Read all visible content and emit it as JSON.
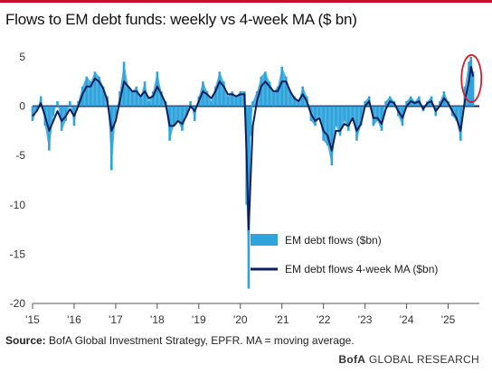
{
  "header": {
    "title": "Flows to EM debt funds: weekly vs 4-week MA ($ bn)"
  },
  "footer": {
    "source_label": "Source:",
    "source_text": " BofA Global Investment Strategy, EPFR. MA = moving average.",
    "brand_bofa": "BofA",
    "brand_rest": " GLOBAL RESEARCH"
  },
  "colors": {
    "accent_red": "#c8102e",
    "weekly_flows": "#2fa4dc",
    "ma_line": "#0b1f5c",
    "highlight_circle": "#d22030"
  },
  "chart_data": {
    "type": "area",
    "title": "Flows to EM debt funds: weekly vs 4-week MA ($ bn)",
    "xlabel": "",
    "ylabel": "",
    "x_ticks": [
      "'15",
      "'16",
      "'17",
      "'18",
      "'19",
      "'20",
      "'21",
      "'22",
      "'23",
      "'24",
      "'25"
    ],
    "y_ticks": [
      5,
      0,
      -5,
      -10,
      -15,
      -20
    ],
    "xlim": [
      2015.0,
      2025.75
    ],
    "ylim": [
      -20,
      6
    ],
    "grid": false,
    "legend_position": "bottom-center",
    "annotations": [
      "red circle around latest 2025 spike"
    ],
    "series": [
      {
        "name": "EM debt flows ($bn)",
        "style": "bars",
        "x": [
          2015.0,
          2015.1,
          2015.2,
          2015.3,
          2015.4,
          2015.5,
          2015.6,
          2015.7,
          2015.8,
          2015.9,
          2016.0,
          2016.1,
          2016.2,
          2016.3,
          2016.4,
          2016.5,
          2016.6,
          2016.7,
          2016.8,
          2016.9,
          2017.0,
          2017.1,
          2017.2,
          2017.3,
          2017.4,
          2017.5,
          2017.6,
          2017.7,
          2017.8,
          2017.9,
          2018.0,
          2018.1,
          2018.2,
          2018.3,
          2018.4,
          2018.5,
          2018.6,
          2018.7,
          2018.8,
          2018.9,
          2019.0,
          2019.1,
          2019.2,
          2019.3,
          2019.4,
          2019.5,
          2019.6,
          2019.7,
          2019.8,
          2019.9,
          2020.0,
          2020.1,
          2020.15,
          2020.2,
          2020.25,
          2020.3,
          2020.4,
          2020.5,
          2020.6,
          2020.7,
          2020.8,
          2020.9,
          2021.0,
          2021.1,
          2021.2,
          2021.3,
          2021.4,
          2021.5,
          2021.6,
          2021.7,
          2021.8,
          2021.9,
          2022.0,
          2022.1,
          2022.2,
          2022.3,
          2022.4,
          2022.5,
          2022.6,
          2022.7,
          2022.8,
          2022.9,
          2023.0,
          2023.1,
          2023.2,
          2023.3,
          2023.4,
          2023.5,
          2023.6,
          2023.7,
          2023.8,
          2023.9,
          2024.0,
          2024.1,
          2024.2,
          2024.3,
          2024.4,
          2024.5,
          2024.6,
          2024.7,
          2024.8,
          2024.9,
          2025.0,
          2025.1,
          2025.2,
          2025.3,
          2025.4,
          2025.5,
          2025.55,
          2025.6
        ],
        "values": [
          -1.5,
          -0.5,
          1.0,
          -2.0,
          -4.5,
          -1.0,
          0.5,
          -2.5,
          -1.5,
          0.5,
          -2.0,
          0.5,
          2.0,
          3.0,
          2.5,
          3.5,
          3.0,
          2.0,
          1.0,
          -6.5,
          -1.0,
          1.5,
          4.5,
          2.0,
          1.5,
          2.0,
          1.0,
          2.5,
          0.5,
          1.5,
          3.5,
          1.5,
          0.5,
          -3.5,
          -2.0,
          -1.5,
          -2.5,
          -1.0,
          0.5,
          -1.5,
          1.0,
          2.5,
          1.5,
          0.5,
          2.0,
          3.5,
          2.5,
          1.0,
          1.5,
          1.0,
          1.5,
          1.5,
          -10.0,
          -18.5,
          -3.0,
          0.5,
          1.5,
          3.0,
          3.5,
          2.5,
          1.5,
          2.0,
          4.0,
          3.0,
          1.5,
          1.0,
          0.5,
          2.0,
          1.0,
          -1.5,
          -2.0,
          -1.0,
          -3.5,
          -4.0,
          -6.0,
          -2.0,
          -3.0,
          -1.5,
          -2.5,
          -1.0,
          -3.5,
          -2.0,
          0.5,
          1.0,
          -2.0,
          -1.5,
          -2.5,
          0.5,
          1.0,
          0.5,
          -1.0,
          -2.0,
          0.5,
          1.0,
          0.5,
          1.0,
          -0.5,
          0.5,
          1.0,
          -1.0,
          0.5,
          1.5,
          0.5,
          -1.0,
          -1.5,
          -3.5,
          2.0,
          4.5,
          5.0,
          3.5
        ]
      },
      {
        "name": "EM debt flows 4-week MA ($bn)",
        "style": "line",
        "x": [
          2015.0,
          2015.1,
          2015.2,
          2015.3,
          2015.4,
          2015.5,
          2015.6,
          2015.7,
          2015.8,
          2015.9,
          2016.0,
          2016.1,
          2016.2,
          2016.3,
          2016.4,
          2016.5,
          2016.6,
          2016.7,
          2016.8,
          2016.9,
          2017.0,
          2017.1,
          2017.2,
          2017.3,
          2017.4,
          2017.5,
          2017.6,
          2017.7,
          2017.8,
          2017.9,
          2018.0,
          2018.1,
          2018.2,
          2018.3,
          2018.4,
          2018.5,
          2018.6,
          2018.7,
          2018.8,
          2018.9,
          2019.0,
          2019.1,
          2019.2,
          2019.3,
          2019.4,
          2019.5,
          2019.6,
          2019.7,
          2019.8,
          2019.9,
          2020.0,
          2020.1,
          2020.15,
          2020.2,
          2020.25,
          2020.3,
          2020.4,
          2020.5,
          2020.6,
          2020.7,
          2020.8,
          2020.9,
          2021.0,
          2021.1,
          2021.2,
          2021.3,
          2021.4,
          2021.5,
          2021.6,
          2021.7,
          2021.8,
          2021.9,
          2022.0,
          2022.1,
          2022.2,
          2022.3,
          2022.4,
          2022.5,
          2022.6,
          2022.7,
          2022.8,
          2022.9,
          2023.0,
          2023.1,
          2023.2,
          2023.3,
          2023.4,
          2023.5,
          2023.6,
          2023.7,
          2023.8,
          2023.9,
          2024.0,
          2024.1,
          2024.2,
          2024.3,
          2024.4,
          2024.5,
          2024.6,
          2024.7,
          2024.8,
          2024.9,
          2025.0,
          2025.1,
          2025.2,
          2025.3,
          2025.4,
          2025.5,
          2025.55,
          2025.6
        ],
        "values": [
          -1.0,
          -0.5,
          0.3,
          -1.0,
          -2.5,
          -1.5,
          -0.5,
          -1.5,
          -1.0,
          -0.3,
          -1.0,
          0.0,
          1.2,
          2.0,
          2.0,
          2.8,
          2.5,
          1.8,
          0.5,
          -2.5,
          -1.5,
          0.5,
          2.5,
          2.0,
          1.5,
          1.5,
          1.0,
          1.5,
          0.8,
          1.0,
          2.0,
          1.2,
          0.3,
          -2.0,
          -2.0,
          -1.5,
          -1.8,
          -1.0,
          0.0,
          -0.5,
          0.5,
          1.5,
          1.2,
          0.8,
          1.5,
          2.5,
          2.0,
          1.2,
          1.2,
          1.0,
          1.2,
          1.2,
          -5.0,
          -12.5,
          -7.0,
          -2.0,
          0.5,
          2.0,
          2.5,
          2.0,
          1.5,
          1.5,
          2.5,
          2.5,
          1.5,
          0.8,
          0.5,
          1.2,
          0.5,
          -0.8,
          -1.5,
          -1.2,
          -2.5,
          -3.0,
          -4.5,
          -2.5,
          -2.5,
          -1.8,
          -2.0,
          -1.2,
          -2.5,
          -1.8,
          0.0,
          0.5,
          -1.2,
          -1.2,
          -1.8,
          -0.3,
          0.5,
          0.3,
          -0.5,
          -1.2,
          0.0,
          0.5,
          0.3,
          0.5,
          -0.3,
          0.3,
          0.5,
          -0.5,
          0.0,
          0.8,
          0.3,
          -0.5,
          -1.2,
          -2.5,
          0.5,
          2.5,
          4.0,
          3.0
        ]
      }
    ]
  }
}
